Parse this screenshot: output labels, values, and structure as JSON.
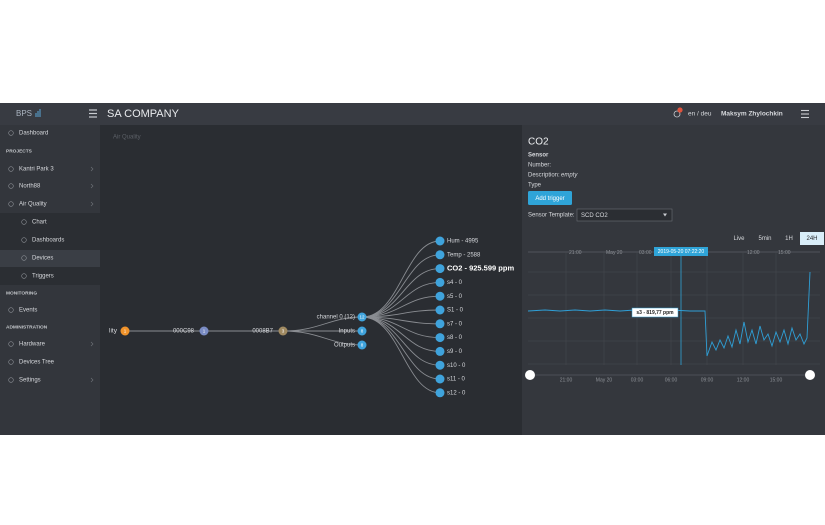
{
  "header": {
    "logo": "BPS",
    "company": "SA COMPANY",
    "language": "en / deu",
    "user": "Maksym Zhylochkin"
  },
  "sidebar": {
    "items": [
      "Dashboard",
      "PROJECTS",
      "Kantri Park 3",
      "North88",
      "Air Quality",
      "Chart",
      "Dashboards",
      "Devices",
      "Triggers",
      "MONITORING",
      "Events",
      "ADMINISTRATION",
      "Hardware",
      "Devices Tree",
      "Settings"
    ]
  },
  "tree": {
    "caption": "Air Quality",
    "root": {
      "label": "lity",
      "badge": "1"
    },
    "nodes": [
      {
        "label": "000C98",
        "badge": "1"
      },
      {
        "label": "0008B7",
        "badge": "3"
      }
    ],
    "branches": [
      {
        "label": "channel 0 (12)",
        "badge": "12"
      },
      {
        "label": "Inputs",
        "badge": "8"
      },
      {
        "label": "Outputs",
        "badge": "8"
      }
    ],
    "leaves": [
      "Hum - 4995",
      "Temp - 2588",
      "CO2 - 925.599 ppm",
      "s4 - 0",
      "s5 - 0",
      "S1 - 0",
      "s7 - 0",
      "s8 - 0",
      "s9 - 0",
      "s10 - 0",
      "s11 - 0",
      "s12 - 0"
    ]
  },
  "panel": {
    "title": "CO2",
    "subtitle": "Sensor",
    "number_label": "Number:",
    "description_label": "Description:",
    "description_value": "empty",
    "type_label": "Type",
    "button": "Add trigger",
    "template_label": "Sensor Template:",
    "template_value": "SCD CO2",
    "ranges": [
      "Live",
      "5min",
      "1H",
      "24H"
    ],
    "chart": {
      "top_ticks": [
        "21:00",
        "May 20",
        "03:00",
        "12:00",
        "15:00"
      ],
      "bottom_ticks": [
        "21:00",
        "May 20",
        "03:00",
        "06:00",
        "09:00",
        "12:00",
        "15:00"
      ],
      "crosshair_label": "2019-05-20 07:22:20",
      "point_label": "s3 - 819,77 ppm"
    }
  }
}
